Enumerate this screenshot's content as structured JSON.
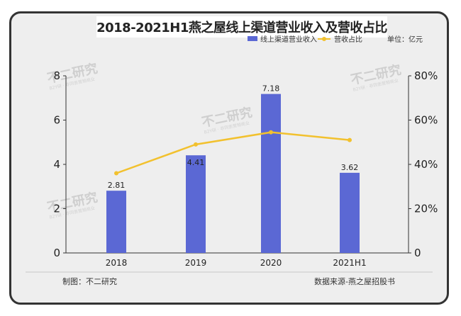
{
  "title": "2018-2021H1燕之屋线上渠道营业收入及营收占比",
  "legend": {
    "bar_label": "线上渠道营业收入",
    "line_label": "营收占比"
  },
  "unit_label": "单位：亿元",
  "footer": {
    "made_by": "制图：不二研究",
    "source": "数据来源-燕之屋招股书"
  },
  "watermark": {
    "main": "不二研究",
    "sub": "B2Y研 · 非同质营销商业"
  },
  "colors": {
    "bar": "#5b68d4",
    "line": "#f2c12e",
    "background": "#eeeeee",
    "border": "#333333"
  },
  "chart_data": {
    "type": "bar",
    "categories": [
      "2018",
      "2019",
      "2020",
      "2021H1"
    ],
    "series": [
      {
        "name": "线上渠道营业收入",
        "type": "bar",
        "axis": "left",
        "values": [
          2.81,
          4.41,
          7.18,
          3.62
        ],
        "labels": [
          "2.81",
          "4.41",
          "7.18",
          "3.62"
        ]
      },
      {
        "name": "营收占比",
        "type": "line",
        "axis": "right",
        "values": [
          0.36,
          0.49,
          0.545,
          0.51
        ]
      }
    ],
    "y_left": {
      "min": 0,
      "max": 8,
      "ticks": [
        0,
        2,
        4,
        6,
        8
      ],
      "tick_labels": [
        "0",
        "2",
        "4",
        "6",
        "8"
      ]
    },
    "y_right": {
      "min": 0,
      "max": 0.8,
      "ticks": [
        0,
        0.2,
        0.4,
        0.6,
        0.8
      ],
      "tick_labels": [
        "0",
        "20%",
        "40%",
        "60%",
        "80%"
      ]
    },
    "grid": false,
    "legend_position": "top-right"
  }
}
